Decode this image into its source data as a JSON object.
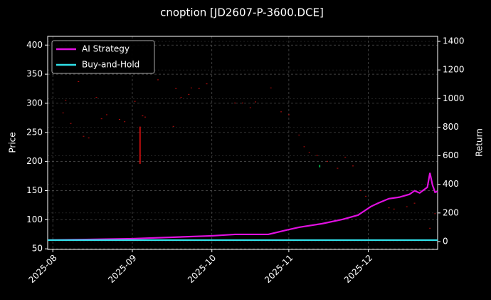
{
  "chart_data": {
    "type": "candlestick",
    "title": "cnoption [JD2607-P-3600.DCE]",
    "ylabel": "Price",
    "y2label": "Return",
    "xlim": [
      -2,
      150
    ],
    "xticks": [
      {
        "value": 0,
        "label": "2025-08"
      },
      {
        "value": 31,
        "label": "2025-09"
      },
      {
        "value": 62,
        "label": "2025-10"
      },
      {
        "value": 92,
        "label": "2025-11"
      },
      {
        "value": 123,
        "label": "2025-12"
      }
    ],
    "ylim": [
      49,
      415
    ],
    "yticks": [
      50,
      100,
      150,
      200,
      250,
      300,
      350,
      400
    ],
    "y2lim": [
      -55,
      1435
    ],
    "y2ticks": [
      0,
      200,
      400,
      600,
      800,
      1000,
      1200,
      1400
    ],
    "grid": true,
    "legend": "upper left",
    "up_color": "#00c853",
    "down_color": "#e01010",
    "candles": {
      "x": [
        4,
        5,
        7,
        10,
        12,
        14,
        17,
        19,
        21,
        26,
        28,
        32,
        34,
        35,
        36,
        41,
        47,
        48,
        50,
        53,
        54,
        57,
        60,
        71,
        74,
        77,
        79,
        85,
        89,
        92,
        96,
        98,
        100,
        103,
        104,
        107,
        111,
        114,
        117,
        120,
        122,
        131,
        133,
        138,
        141,
        147,
        149
      ],
      "open": [
        284,
        306,
        266,
        338,
        244,
        241,
        311,
        274,
        281,
        273,
        269,
        304,
        260,
        279,
        277,
        341,
        261,
        326,
        311,
        316,
        327,
        326,
        334,
        301,
        301,
        293,
        303,
        327,
        286,
        281,
        246,
        226,
        216,
        211,
        190,
        201,
        189,
        208,
        193,
        151,
        141,
        121,
        119,
        123,
        129,
        86,
        111
      ],
      "close": [
        283,
        305,
        265,
        337,
        243,
        240,
        310,
        273,
        280,
        272,
        268,
        303,
        196,
        278,
        276,
        340,
        260,
        325,
        310,
        315,
        326,
        325,
        333,
        300,
        300,
        292,
        302,
        326,
        285,
        280,
        245,
        225,
        215,
        210,
        194,
        200,
        188,
        207,
        192,
        150,
        140,
        120,
        118,
        122,
        128,
        85,
        110
      ]
    },
    "series": [
      {
        "name": "AI Strategy",
        "color": "#e010e0",
        "axis": "y2",
        "x": [
          -2,
          31,
          62,
          71,
          84,
          91,
          96,
          105,
          113,
          119,
          124,
          127,
          131,
          135,
          139,
          141,
          143,
          146,
          147,
          148,
          149,
          150
        ],
        "values": [
          10,
          20,
          40,
          50,
          50,
          80,
          100,
          125,
          155,
          185,
          245,
          270,
          300,
          310,
          330,
          355,
          340,
          380,
          480,
          395,
          345,
          350
        ]
      },
      {
        "name": "Buy-and-Hold",
        "color": "#30e0e8",
        "axis": "y2",
        "x": [
          -2,
          150
        ],
        "values": [
          10,
          10
        ]
      }
    ]
  }
}
